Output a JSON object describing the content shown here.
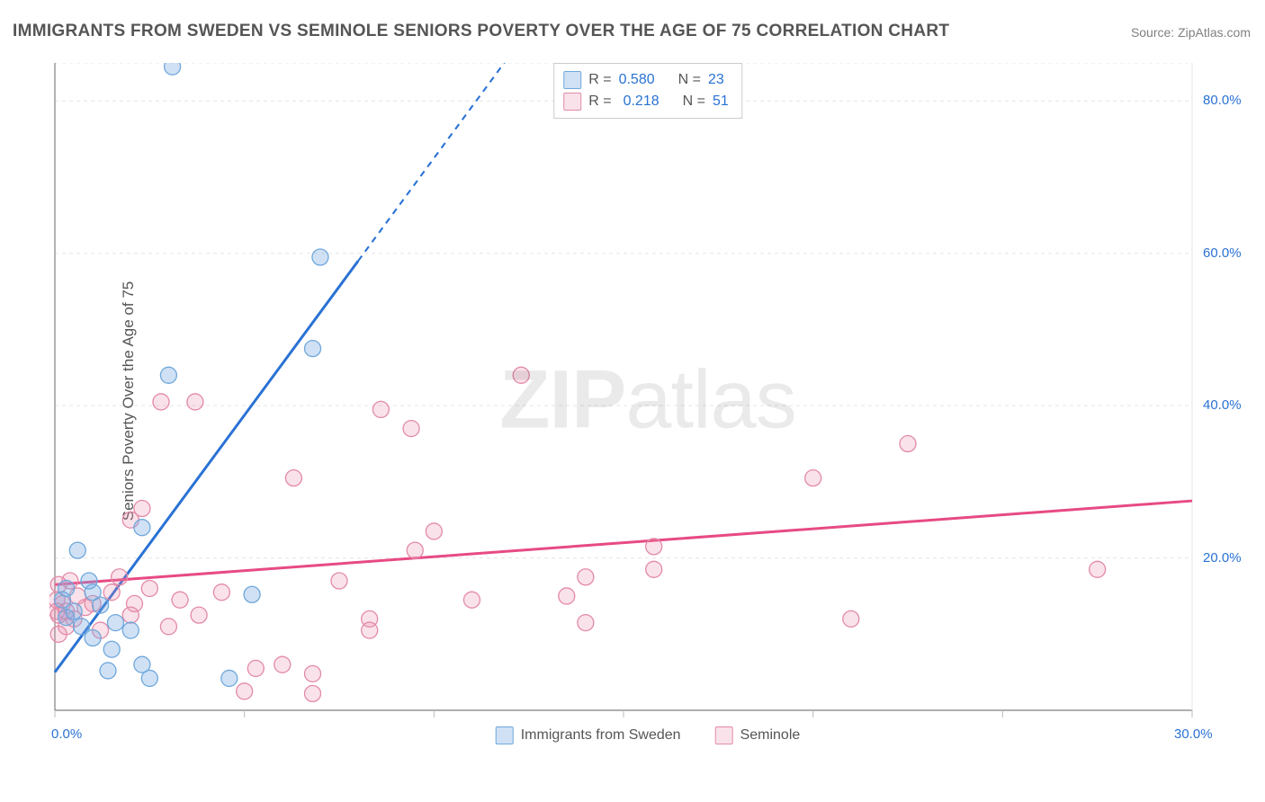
{
  "title": "IMMIGRANTS FROM SWEDEN VS SEMINOLE SENIORS POVERTY OVER THE AGE OF 75 CORRELATION CHART",
  "source": "Source: ZipAtlas.com",
  "watermark_parts": [
    "ZIP",
    "atlas"
  ],
  "ylabel": "Seniors Poverty Over the Age of 75",
  "chart": {
    "type": "scatter-correlation",
    "background_color": "#ffffff",
    "grid_color": "#e5e5e5",
    "axis_color": "#808080",
    "tick_color": "#bbbbbb",
    "axis_label_color": "#2a72d4",
    "x": {
      "min": 0.0,
      "max": 30.0,
      "ticks": [
        0.0,
        5.0,
        10.0,
        15.0,
        20.0,
        25.0,
        30.0
      ],
      "labels_shown": [
        0.0,
        30.0
      ],
      "label_fmt_suffix": "%"
    },
    "y": {
      "min": 0.0,
      "max": 85.0,
      "gridlines": [
        20.0,
        40.0,
        60.0,
        80.0
      ],
      "labels_shown": [
        20.0,
        40.0,
        60.0,
        80.0
      ],
      "label_fmt_suffix": "%"
    },
    "series": [
      {
        "name": "Immigrants from Sweden",
        "key": "sweden",
        "marker_fill": "rgba(120,170,225,0.35)",
        "marker_stroke": "#6fa8dc",
        "marker_radius": 9,
        "line_color": "#2a72d4",
        "line_width": 3,
        "R": "0.580",
        "N": "23",
        "trend": {
          "x1": 0.0,
          "y1": 5.0,
          "x2_solid": 8.0,
          "y2_solid": 59.0,
          "x2_dash": 12.0,
          "y2_dash": 86.0
        },
        "points": [
          [
            3.1,
            84.5
          ],
          [
            7.0,
            59.5
          ],
          [
            6.8,
            47.5
          ],
          [
            3.0,
            44.0
          ],
          [
            0.6,
            21.0
          ],
          [
            1.0,
            15.5
          ],
          [
            1.6,
            11.5
          ],
          [
            2.3,
            24.0
          ],
          [
            5.2,
            15.2
          ],
          [
            1.4,
            5.2
          ],
          [
            2.3,
            6.0
          ],
          [
            2.0,
            10.5
          ],
          [
            2.5,
            4.2
          ],
          [
            4.6,
            4.2
          ],
          [
            0.5,
            13.0
          ],
          [
            0.2,
            14.5
          ],
          [
            0.3,
            12.2
          ],
          [
            0.9,
            17.0
          ],
          [
            1.2,
            13.8
          ],
          [
            0.3,
            16.0
          ],
          [
            0.7,
            11.0
          ],
          [
            1.0,
            9.5
          ],
          [
            1.5,
            8.0
          ]
        ]
      },
      {
        "name": "Seminole",
        "key": "seminole",
        "marker_fill": "rgba(235,140,170,0.25)",
        "marker_stroke": "#e38aa7",
        "marker_radius": 9,
        "line_color": "#e74a84",
        "line_width": 3,
        "R": "0.218",
        "N": "51",
        "trend": {
          "x1": 0.0,
          "y1": 16.5,
          "x2_solid": 30.0,
          "y2_solid": 27.5,
          "x2_dash": 30.0,
          "y2_dash": 27.5
        },
        "points": [
          [
            2.8,
            40.5
          ],
          [
            3.7,
            40.5
          ],
          [
            8.6,
            39.5
          ],
          [
            12.3,
            44.0
          ],
          [
            6.3,
            30.5
          ],
          [
            2.3,
            26.5
          ],
          [
            2.0,
            25.0
          ],
          [
            9.4,
            37.0
          ],
          [
            10.0,
            23.5
          ],
          [
            7.5,
            17.0
          ],
          [
            9.5,
            21.0
          ],
          [
            11.0,
            14.5
          ],
          [
            13.5,
            15.0
          ],
          [
            14.0,
            17.5
          ],
          [
            15.8,
            18.5
          ],
          [
            15.8,
            21.5
          ],
          [
            20.0,
            30.5
          ],
          [
            22.5,
            35.0
          ],
          [
            27.5,
            18.5
          ],
          [
            21.0,
            12.0
          ],
          [
            14.0,
            11.5
          ],
          [
            8.3,
            10.5
          ],
          [
            8.3,
            12.0
          ],
          [
            6.8,
            4.8
          ],
          [
            6.8,
            2.2
          ],
          [
            6.0,
            6.0
          ],
          [
            5.0,
            2.5
          ],
          [
            5.3,
            5.5
          ],
          [
            4.4,
            15.5
          ],
          [
            3.8,
            12.5
          ],
          [
            3.3,
            14.5
          ],
          [
            3.0,
            11.0
          ],
          [
            2.5,
            16.0
          ],
          [
            2.1,
            14.0
          ],
          [
            2.0,
            12.5
          ],
          [
            1.7,
            17.5
          ],
          [
            1.5,
            15.5
          ],
          [
            1.2,
            10.5
          ],
          [
            1.0,
            14.0
          ],
          [
            0.8,
            13.5
          ],
          [
            0.6,
            15.0
          ],
          [
            0.5,
            12.0
          ],
          [
            0.4,
            17.0
          ],
          [
            0.3,
            13.0
          ],
          [
            0.3,
            11.0
          ],
          [
            0.2,
            14.0
          ],
          [
            0.1,
            16.5
          ],
          [
            0.1,
            12.5
          ],
          [
            0.1,
            10.0
          ],
          [
            0.05,
            14.5
          ],
          [
            0.05,
            13.0
          ]
        ]
      }
    ],
    "legend_top_labels": {
      "R": "R =",
      "N": "N ="
    },
    "legend_bottom": {
      "items": [
        {
          "label": "Immigrants from Sweden",
          "fill": "rgba(120,170,225,0.45)",
          "stroke": "#6fa8dc"
        },
        {
          "label": "Seminole",
          "fill": "rgba(235,140,170,0.35)",
          "stroke": "#e38aa7"
        }
      ]
    }
  }
}
